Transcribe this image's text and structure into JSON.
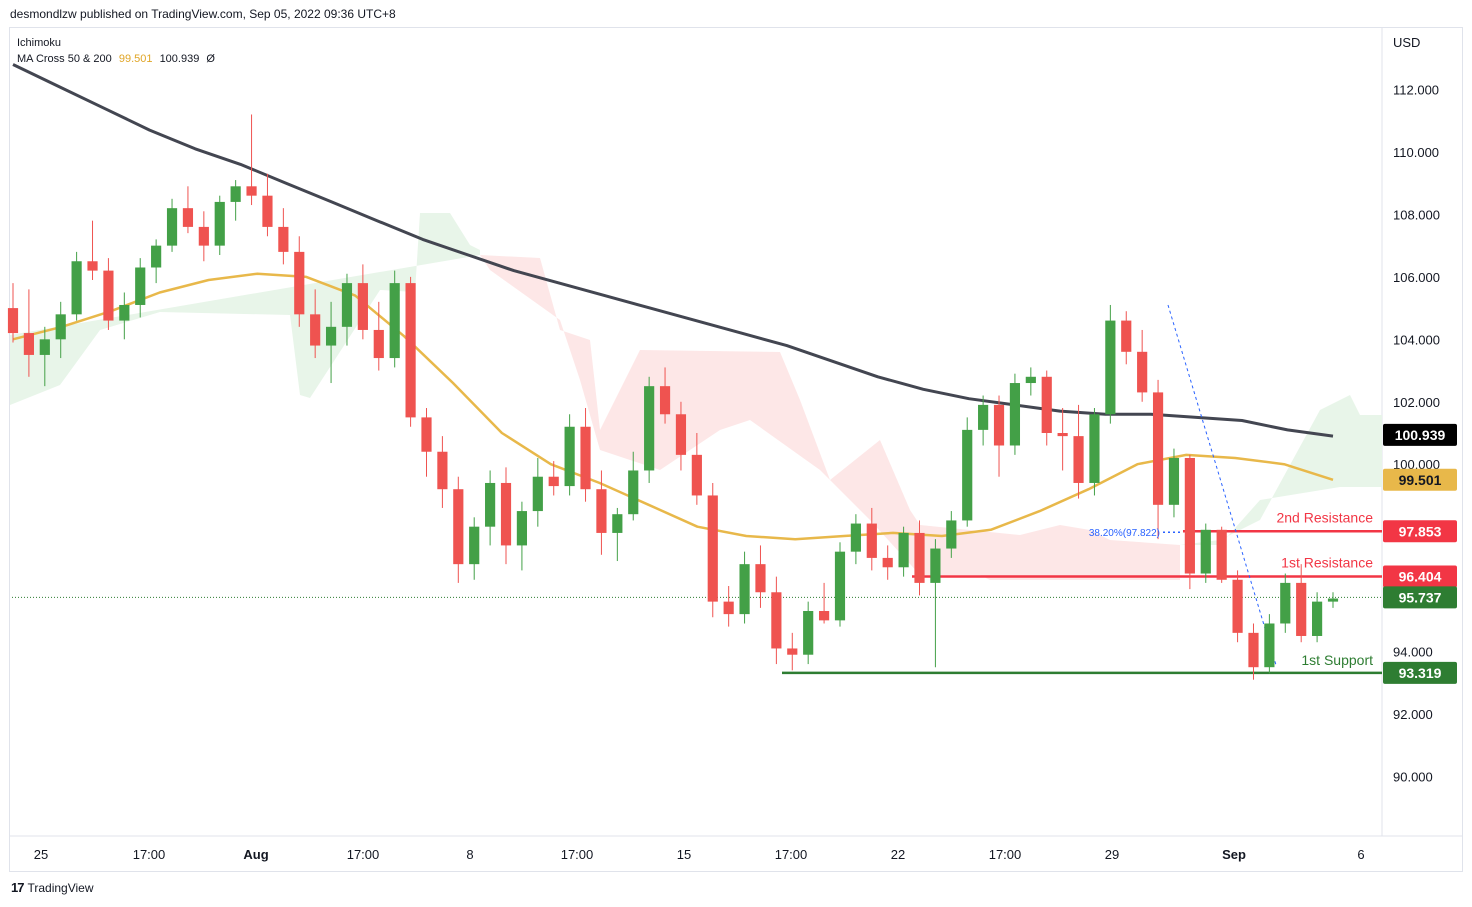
{
  "header": {
    "publisher": "desmondlzw published on TradingView.com, Sep 05, 2022 09:36 UTC+8"
  },
  "legend": {
    "indicator1": "Ichimoku",
    "indicator2": "MA Cross 50 & 200",
    "ma50_value": "99.501",
    "ma200_value": "100.939",
    "extra": "Ø"
  },
  "footer": {
    "brand": "TradingView",
    "logo": "17"
  },
  "colors": {
    "up": "#26a69a",
    "upCandle": "#43a047",
    "down": "#ef5350",
    "ma50": "#e8b84a",
    "ma200": "#434651",
    "cloudBull": "#e8f5e9",
    "cloudBear": "#fde7e7",
    "resistance": "#f23645",
    "support": "#2e7d32"
  },
  "chart_data": {
    "type": "candlestick",
    "currency": "USD",
    "ylim": [
      88.0,
      114.0
    ],
    "y_ticks": [
      "112.000",
      "110.000",
      "108.000",
      "106.000",
      "104.000",
      "102.000",
      "100.000",
      "94.000",
      "92.000",
      "90.000"
    ],
    "x_ticks": [
      "25",
      "17:00",
      "Aug",
      "17:00",
      "8",
      "17:00",
      "15",
      "17:00",
      "22",
      "17:00",
      "29",
      "Sep",
      "6"
    ],
    "price_labels": [
      {
        "name": "MA200",
        "value": "100.939",
        "style": "dark"
      },
      {
        "name": "MA50",
        "value": "99.501",
        "style": "ma50"
      },
      {
        "name": "2nd Resistance",
        "value": "97.853",
        "style": "red"
      },
      {
        "name": "1st Resistance",
        "value": "96.404",
        "style": "red"
      },
      {
        "name": "Last",
        "value": "95.737",
        "style": "green"
      },
      {
        "name": "1st Support",
        "value": "93.319",
        "style": "green"
      }
    ],
    "annotations": {
      "second_resistance": "2nd Resistance",
      "first_resistance": "1st Resistance",
      "first_support": "1st Support",
      "fib": "38.20%(97.822)"
    },
    "levels": {
      "second_resistance": 97.853,
      "first_resistance": 96.404,
      "first_support": 93.319,
      "last": 95.737
    },
    "ma200": [
      112.8,
      112.1,
      111.4,
      110.7,
      110.1,
      109.6,
      109.0,
      108.4,
      107.8,
      107.2,
      106.7,
      106.2,
      105.8,
      105.4,
      105.0,
      104.6,
      104.2,
      103.8,
      103.3,
      102.8,
      102.4,
      102.1,
      101.9,
      101.7,
      101.6,
      101.6,
      101.5,
      101.4,
      101.1,
      100.9
    ],
    "ma50": [
      104.0,
      104.4,
      104.9,
      105.5,
      105.9,
      106.1,
      106.0,
      105.4,
      104.1,
      102.6,
      101.0,
      100.0,
      99.4,
      98.7,
      98.0,
      97.7,
      97.6,
      97.7,
      97.8,
      97.7,
      97.9,
      98.5,
      99.2,
      100.0,
      100.3,
      100.2,
      100.0,
      99.5
    ],
    "candles": [
      [
        105.0,
        105.8,
        103.9,
        104.2
      ],
      [
        104.2,
        105.6,
        102.8,
        103.5
      ],
      [
        103.5,
        104.4,
        102.5,
        104.0
      ],
      [
        104.0,
        105.2,
        103.4,
        104.8
      ],
      [
        104.8,
        106.8,
        104.6,
        106.5
      ],
      [
        106.5,
        107.8,
        105.9,
        106.2
      ],
      [
        106.2,
        106.6,
        104.3,
        104.6
      ],
      [
        104.6,
        105.5,
        104.0,
        105.1
      ],
      [
        105.1,
        106.6,
        104.7,
        106.3
      ],
      [
        106.3,
        107.2,
        105.8,
        107.0
      ],
      [
        107.0,
        108.5,
        106.8,
        108.2
      ],
      [
        108.2,
        108.9,
        107.4,
        107.6
      ],
      [
        107.6,
        108.1,
        106.5,
        107.0
      ],
      [
        107.0,
        108.6,
        106.7,
        108.4
      ],
      [
        108.4,
        109.1,
        107.8,
        108.9
      ],
      [
        108.9,
        111.2,
        108.3,
        108.6
      ],
      [
        108.6,
        109.3,
        107.3,
        107.6
      ],
      [
        107.6,
        108.2,
        106.4,
        106.8
      ],
      [
        106.8,
        107.3,
        104.4,
        104.8
      ],
      [
        104.8,
        105.6,
        103.4,
        103.8
      ],
      [
        103.8,
        105.2,
        102.6,
        104.4
      ],
      [
        104.4,
        106.1,
        103.8,
        105.8
      ],
      [
        105.8,
        106.4,
        104.0,
        104.3
      ],
      [
        104.3,
        105.2,
        103.0,
        103.4
      ],
      [
        103.4,
        106.2,
        103.1,
        105.8
      ],
      [
        105.8,
        106.0,
        101.2,
        101.5
      ],
      [
        101.5,
        101.8,
        99.6,
        100.4
      ],
      [
        100.4,
        100.9,
        98.6,
        99.2
      ],
      [
        99.2,
        99.6,
        96.2,
        96.8
      ],
      [
        96.8,
        98.3,
        96.3,
        98.0
      ],
      [
        98.0,
        99.8,
        97.4,
        99.4
      ],
      [
        99.4,
        99.9,
        96.8,
        97.4
      ],
      [
        97.4,
        98.8,
        96.6,
        98.5
      ],
      [
        98.5,
        100.2,
        98.0,
        99.6
      ],
      [
        99.6,
        100.1,
        99.0,
        99.3
      ],
      [
        99.3,
        101.6,
        99.0,
        101.2
      ],
      [
        101.2,
        101.8,
        98.8,
        99.2
      ],
      [
        99.2,
        99.8,
        97.1,
        97.8
      ],
      [
        97.8,
        98.6,
        96.9,
        98.4
      ],
      [
        98.4,
        100.4,
        98.2,
        99.8
      ],
      [
        99.8,
        102.8,
        99.4,
        102.5
      ],
      [
        102.5,
        103.1,
        101.3,
        101.6
      ],
      [
        101.6,
        102.0,
        99.8,
        100.3
      ],
      [
        100.3,
        101.0,
        98.7,
        99.0
      ],
      [
        99.0,
        99.4,
        95.1,
        95.6
      ],
      [
        95.6,
        96.1,
        94.8,
        95.2
      ],
      [
        95.2,
        97.2,
        94.9,
        96.8
      ],
      [
        96.8,
        97.4,
        95.4,
        95.9
      ],
      [
        95.9,
        96.4,
        93.6,
        94.1
      ],
      [
        94.1,
        94.6,
        93.4,
        93.9
      ],
      [
        93.9,
        95.6,
        93.6,
        95.3
      ],
      [
        95.3,
        96.2,
        94.9,
        95.0
      ],
      [
        95.0,
        97.5,
        94.8,
        97.2
      ],
      [
        97.2,
        98.4,
        96.8,
        98.1
      ],
      [
        98.1,
        98.6,
        96.6,
        97.0
      ],
      [
        97.0,
        97.4,
        96.3,
        96.7
      ],
      [
        96.7,
        98.0,
        96.4,
        97.8
      ],
      [
        97.8,
        98.2,
        95.8,
        96.2
      ],
      [
        96.2,
        97.6,
        93.5,
        97.3
      ],
      [
        97.3,
        98.5,
        97.0,
        98.2
      ],
      [
        98.2,
        101.5,
        98.0,
        101.1
      ],
      [
        101.1,
        102.2,
        100.6,
        101.9
      ],
      [
        101.9,
        102.2,
        99.6,
        100.6
      ],
      [
        100.6,
        102.9,
        100.3,
        102.6
      ],
      [
        102.6,
        103.1,
        102.2,
        102.8
      ],
      [
        102.8,
        103.0,
        100.6,
        101.0
      ],
      [
        101.0,
        101.8,
        99.8,
        100.9
      ],
      [
        100.9,
        101.9,
        98.9,
        99.4
      ],
      [
        99.4,
        101.8,
        99.0,
        101.6
      ],
      [
        101.6,
        105.1,
        101.3,
        104.6
      ],
      [
        104.6,
        104.9,
        103.2,
        103.6
      ],
      [
        103.6,
        104.3,
        102.0,
        102.3
      ],
      [
        102.3,
        102.7,
        97.6,
        98.7
      ],
      [
        98.7,
        100.5,
        98.3,
        100.2
      ],
      [
        100.2,
        100.3,
        96.0,
        96.5
      ],
      [
        96.5,
        98.1,
        96.2,
        97.9
      ],
      [
        97.9,
        98.0,
        96.2,
        96.3
      ],
      [
        96.3,
        96.6,
        94.3,
        94.6
      ],
      [
        94.6,
        94.9,
        93.1,
        93.5
      ],
      [
        93.5,
        95.2,
        93.3,
        94.9
      ],
      [
        94.9,
        96.5,
        94.6,
        96.2
      ],
      [
        96.2,
        96.8,
        94.3,
        94.5
      ],
      [
        94.5,
        95.9,
        94.3,
        95.6
      ],
      [
        95.6,
        95.9,
        95.4,
        95.7
      ]
    ]
  }
}
